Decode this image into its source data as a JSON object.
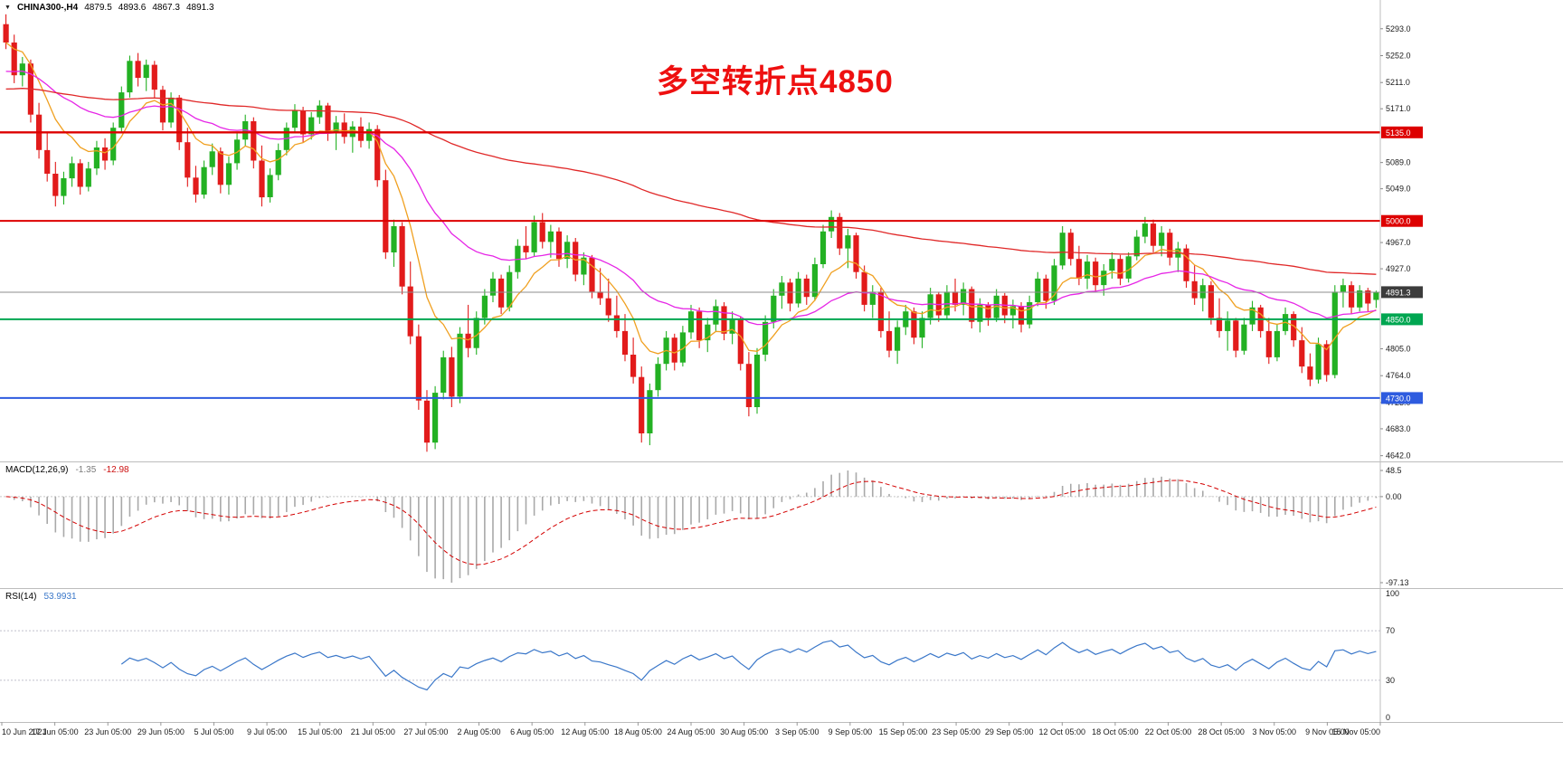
{
  "topbar": {
    "menu_icon": "▼",
    "symbol_period": "CHINA300-,H4",
    "open": "4879.5",
    "high": "4893.6",
    "low": "4867.3",
    "close": "4891.3"
  },
  "annotation": {
    "text": "多空转折点4850",
    "color": "#ee1010"
  },
  "panels": {
    "macd": {
      "label": "MACD(12,26,9)",
      "value_main": "-1.35",
      "value_signal": "-12.98",
      "scale": [
        "48.5",
        "0.00",
        "-97.13"
      ]
    },
    "rsi": {
      "label": "RSI(14)",
      "value": "53.9931",
      "scale": [
        "100",
        "70",
        "30",
        "0"
      ],
      "levels": [
        70,
        30
      ]
    }
  },
  "price_axis": {
    "ticks": [
      5293,
      5252,
      5211,
      5171,
      5089,
      5049,
      4967,
      4927,
      4805,
      4764,
      4723,
      4683,
      4642
    ],
    "badges": [
      {
        "price": 5135,
        "label": "5135.0",
        "bg": "#dd0000"
      },
      {
        "price": 5000,
        "label": "5000.0",
        "bg": "#dd0000"
      },
      {
        "price": 4891.3,
        "label": "4891.3",
        "bg": "#3c3c3c"
      },
      {
        "price": 4850,
        "label": "4850.0",
        "bg": "#00a651"
      },
      {
        "price": 4730,
        "label": "4730.0",
        "bg": "#2e5bdf"
      }
    ]
  },
  "time_axis": {
    "labels": [
      "10 Jun 2021",
      "17 Jun 05:00",
      "23 Jun 05:00",
      "29 Jun 05:00",
      "5 Jul 05:00",
      "9 Jul 05:00",
      "15 Jul 05:00",
      "21 Jul 05:00",
      "27 Jul 05:00",
      "2 Aug 05:00",
      "6 Aug 05:00",
      "12 Aug 05:00",
      "18 Aug 05:00",
      "24 Aug 05:00",
      "30 Aug 05:00",
      "3 Sep 05:00",
      "9 Sep 05:00",
      "15 Sep 05:00",
      "23 Sep 05:00",
      "29 Sep 05:00",
      "12 Oct 05:00",
      "18 Oct 05:00",
      "22 Oct 05:00",
      "28 Oct 05:00",
      "3 Nov 05:00",
      "9 Nov 05:00",
      "15 Nov 05:00"
    ]
  },
  "chart_data": {
    "type": "candlestick",
    "title": "CHINA300- H4",
    "price_range": [
      4636,
      5312
    ],
    "colors": {
      "up": "#23b123",
      "down": "#e21b1b",
      "macd_bar": "#a9a9a9",
      "macd_signal": "#d40000",
      "rsi": "#3a77c9"
    },
    "moving_averages": [
      {
        "name": "fast-orange",
        "period": 9,
        "seed": 5272,
        "color": "#f0a020"
      },
      {
        "name": "mid-magenta",
        "period": 30,
        "seed": 5225,
        "color": "#e626e6"
      },
      {
        "name": "slow-red",
        "period": 130,
        "seed": 5200,
        "color": "#e02828"
      }
    ],
    "hlines": [
      {
        "price": 5135,
        "color": "#dd0000",
        "width": 2.4
      },
      {
        "price": 5000,
        "color": "#dd0000",
        "width": 2
      },
      {
        "price": 4850,
        "color": "#00a651",
        "width": 2
      },
      {
        "price": 4730,
        "color": "#2e5bdf",
        "width": 2
      },
      {
        "price": 4891.3,
        "color": "#8c8c8c",
        "width": 1
      }
    ],
    "indicators": {
      "macd": {
        "fast": 12,
        "slow": 26,
        "signal": 9
      },
      "rsi": {
        "period": 14
      }
    },
    "candles": [
      [
        5300,
        5315,
        5262,
        5272
      ],
      [
        5272,
        5284,
        5210,
        5222
      ],
      [
        5222,
        5250,
        5205,
        5240
      ],
      [
        5240,
        5246,
        5150,
        5162
      ],
      [
        5162,
        5180,
        5095,
        5108
      ],
      [
        5108,
        5135,
        5060,
        5072
      ],
      [
        5072,
        5090,
        5022,
        5038
      ],
      [
        5038,
        5075,
        5025,
        5065
      ],
      [
        5065,
        5098,
        5052,
        5088
      ],
      [
        5088,
        5094,
        5040,
        5052
      ],
      [
        5052,
        5090,
        5045,
        5080
      ],
      [
        5080,
        5122,
        5070,
        5112
      ],
      [
        5112,
        5126,
        5078,
        5092
      ],
      [
        5092,
        5150,
        5085,
        5142
      ],
      [
        5142,
        5205,
        5135,
        5196
      ],
      [
        5196,
        5252,
        5188,
        5244
      ],
      [
        5244,
        5256,
        5205,
        5218
      ],
      [
        5218,
        5246,
        5198,
        5238
      ],
      [
        5238,
        5244,
        5188,
        5200
      ],
      [
        5200,
        5206,
        5138,
        5150
      ],
      [
        5150,
        5196,
        5142,
        5188
      ],
      [
        5188,
        5192,
        5108,
        5120
      ],
      [
        5120,
        5142,
        5052,
        5066
      ],
      [
        5066,
        5084,
        5028,
        5040
      ],
      [
        5040,
        5092,
        5034,
        5082
      ],
      [
        5082,
        5118,
        5070,
        5106
      ],
      [
        5106,
        5112,
        5042,
        5055
      ],
      [
        5055,
        5098,
        5040,
        5088
      ],
      [
        5088,
        5134,
        5078,
        5124
      ],
      [
        5124,
        5162,
        5114,
        5152
      ],
      [
        5152,
        5158,
        5080,
        5092
      ],
      [
        5092,
        5115,
        5022,
        5036
      ],
      [
        5036,
        5080,
        5028,
        5070
      ],
      [
        5070,
        5118,
        5062,
        5108
      ],
      [
        5108,
        5150,
        5100,
        5142
      ],
      [
        5142,
        5178,
        5134,
        5168
      ],
      [
        5168,
        5174,
        5120,
        5132
      ],
      [
        5132,
        5166,
        5124,
        5158
      ],
      [
        5158,
        5184,
        5148,
        5176
      ],
      [
        5176,
        5180,
        5122,
        5134
      ],
      [
        5134,
        5160,
        5108,
        5150
      ],
      [
        5150,
        5164,
        5118,
        5128
      ],
      [
        5128,
        5152,
        5104,
        5144
      ],
      [
        5144,
        5158,
        5112,
        5122
      ],
      [
        5122,
        5150,
        5110,
        5140
      ],
      [
        5140,
        5146,
        5052,
        5062
      ],
      [
        5062,
        5078,
        4942,
        4952
      ],
      [
        4952,
        5002,
        4930,
        4992
      ],
      [
        4992,
        4998,
        4888,
        4900
      ],
      [
        4900,
        4938,
        4812,
        4824
      ],
      [
        4824,
        4842,
        4712,
        4726
      ],
      [
        4726,
        4742,
        4648,
        4662
      ],
      [
        4662,
        4748,
        4652,
        4738
      ],
      [
        4738,
        4802,
        4728,
        4792
      ],
      [
        4792,
        4808,
        4716,
        4732
      ],
      [
        4732,
        4838,
        4722,
        4828
      ],
      [
        4828,
        4872,
        4792,
        4806
      ],
      [
        4806,
        4862,
        4796,
        4852
      ],
      [
        4852,
        4896,
        4842,
        4886
      ],
      [
        4886,
        4922,
        4876,
        4912
      ],
      [
        4912,
        4918,
        4858,
        4868
      ],
      [
        4868,
        4932,
        4862,
        4922
      ],
      [
        4922,
        4972,
        4912,
        4962
      ],
      [
        4962,
        4992,
        4942,
        4952
      ],
      [
        4952,
        5008,
        4946,
        4998
      ],
      [
        4998,
        5012,
        4958,
        4968
      ],
      [
        4968,
        4994,
        4944,
        4984
      ],
      [
        4984,
        4990,
        4930,
        4942
      ],
      [
        4942,
        4978,
        4928,
        4968
      ],
      [
        4968,
        4974,
        4908,
        4918
      ],
      [
        4918,
        4952,
        4902,
        4944
      ],
      [
        4944,
        4948,
        4882,
        4892
      ],
      [
        4892,
        4928,
        4872,
        4882
      ],
      [
        4882,
        4912,
        4846,
        4856
      ],
      [
        4856,
        4886,
        4822,
        4832
      ],
      [
        4832,
        4858,
        4786,
        4796
      ],
      [
        4796,
        4822,
        4752,
        4762
      ],
      [
        4762,
        4778,
        4662,
        4676
      ],
      [
        4676,
        4752,
        4658,
        4742
      ],
      [
        4742,
        4792,
        4732,
        4782
      ],
      [
        4782,
        4832,
        4772,
        4822
      ],
      [
        4822,
        4828,
        4772,
        4784
      ],
      [
        4784,
        4840,
        4778,
        4830
      ],
      [
        4830,
        4872,
        4820,
        4862
      ],
      [
        4862,
        4868,
        4806,
        4818
      ],
      [
        4818,
        4852,
        4800,
        4842
      ],
      [
        4842,
        4880,
        4832,
        4870
      ],
      [
        4870,
        4876,
        4818,
        4828
      ],
      [
        4828,
        4862,
        4812,
        4850
      ],
      [
        4850,
        4854,
        4772,
        4782
      ],
      [
        4782,
        4800,
        4702,
        4716
      ],
      [
        4716,
        4806,
        4706,
        4796
      ],
      [
        4796,
        4856,
        4786,
        4846
      ],
      [
        4846,
        4896,
        4836,
        4886
      ],
      [
        4886,
        4916,
        4866,
        4906
      ],
      [
        4906,
        4912,
        4862,
        4874
      ],
      [
        4874,
        4922,
        4868,
        4912
      ],
      [
        4912,
        4918,
        4872,
        4884
      ],
      [
        4884,
        4944,
        4878,
        4934
      ],
      [
        4934,
        4994,
        4928,
        4984
      ],
      [
        4984,
        5016,
        4974,
        5006
      ],
      [
        5006,
        5012,
        4948,
        4958
      ],
      [
        4958,
        4988,
        4928,
        4978
      ],
      [
        4978,
        4982,
        4912,
        4922
      ],
      [
        4922,
        4932,
        4862,
        4872
      ],
      [
        4872,
        4902,
        4852,
        4892
      ],
      [
        4892,
        4898,
        4822,
        4832
      ],
      [
        4832,
        4862,
        4792,
        4802
      ],
      [
        4802,
        4848,
        4782,
        4838
      ],
      [
        4838,
        4872,
        4826,
        4862
      ],
      [
        4862,
        4868,
        4812,
        4822
      ],
      [
        4822,
        4862,
        4806,
        4852
      ],
      [
        4852,
        4898,
        4842,
        4888
      ],
      [
        4888,
        4892,
        4846,
        4856
      ],
      [
        4856,
        4902,
        4850,
        4892
      ],
      [
        4892,
        4912,
        4862,
        4872
      ],
      [
        4872,
        4906,
        4856,
        4896
      ],
      [
        4896,
        4900,
        4836,
        4846
      ],
      [
        4846,
        4882,
        4830,
        4872
      ],
      [
        4872,
        4876,
        4840,
        4852
      ],
      [
        4852,
        4896,
        4846,
        4886
      ],
      [
        4886,
        4890,
        4844,
        4856
      ],
      [
        4856,
        4880,
        4836,
        4870
      ],
      [
        4870,
        4876,
        4830,
        4842
      ],
      [
        4842,
        4886,
        4836,
        4876
      ],
      [
        4876,
        4922,
        4870,
        4912
      ],
      [
        4912,
        4918,
        4866,
        4878
      ],
      [
        4878,
        4942,
        4872,
        4932
      ],
      [
        4932,
        4992,
        4926,
        4982
      ],
      [
        4982,
        4988,
        4932,
        4942
      ],
      [
        4942,
        4962,
        4902,
        4912
      ],
      [
        4912,
        4948,
        4896,
        4938
      ],
      [
        4938,
        4944,
        4892,
        4902
      ],
      [
        4902,
        4934,
        4886,
        4924
      ],
      [
        4924,
        4952,
        4912,
        4942
      ],
      [
        4942,
        4948,
        4902,
        4912
      ],
      [
        4912,
        4952,
        4906,
        4946
      ],
      [
        4946,
        4986,
        4940,
        4976
      ],
      [
        4976,
        5006,
        4966,
        4996
      ],
      [
        4996,
        5002,
        4952,
        4962
      ],
      [
        4962,
        4992,
        4946,
        4982
      ],
      [
        4982,
        4988,
        4932,
        4944
      ],
      [
        4944,
        4968,
        4922,
        4958
      ],
      [
        4958,
        4964,
        4898,
        4908
      ],
      [
        4908,
        4932,
        4872,
        4882
      ],
      [
        4882,
        4912,
        4862,
        4902
      ],
      [
        4902,
        4908,
        4842,
        4852
      ],
      [
        4852,
        4882,
        4822,
        4832
      ],
      [
        4832,
        4862,
        4802,
        4848
      ],
      [
        4848,
        4852,
        4792,
        4802
      ],
      [
        4802,
        4852,
        4796,
        4842
      ],
      [
        4842,
        4878,
        4832,
        4868
      ],
      [
        4868,
        4872,
        4822,
        4832
      ],
      [
        4832,
        4852,
        4782,
        4792
      ],
      [
        4792,
        4842,
        4786,
        4832
      ],
      [
        4832,
        4868,
        4826,
        4858
      ],
      [
        4858,
        4862,
        4808,
        4818
      ],
      [
        4818,
        4838,
        4768,
        4778
      ],
      [
        4778,
        4798,
        4748,
        4758
      ],
      [
        4758,
        4822,
        4752,
        4812
      ],
      [
        4812,
        4818,
        4755,
        4765
      ],
      [
        4765,
        4902,
        4760,
        4892
      ],
      [
        4892,
        4912,
        4868,
        4902
      ],
      [
        4902,
        4908,
        4858,
        4868
      ],
      [
        4868,
        4902,
        4862,
        4894
      ],
      [
        4894,
        4898,
        4862,
        4874
      ],
      [
        4879.5,
        4893.6,
        4867.3,
        4891.3
      ]
    ]
  }
}
